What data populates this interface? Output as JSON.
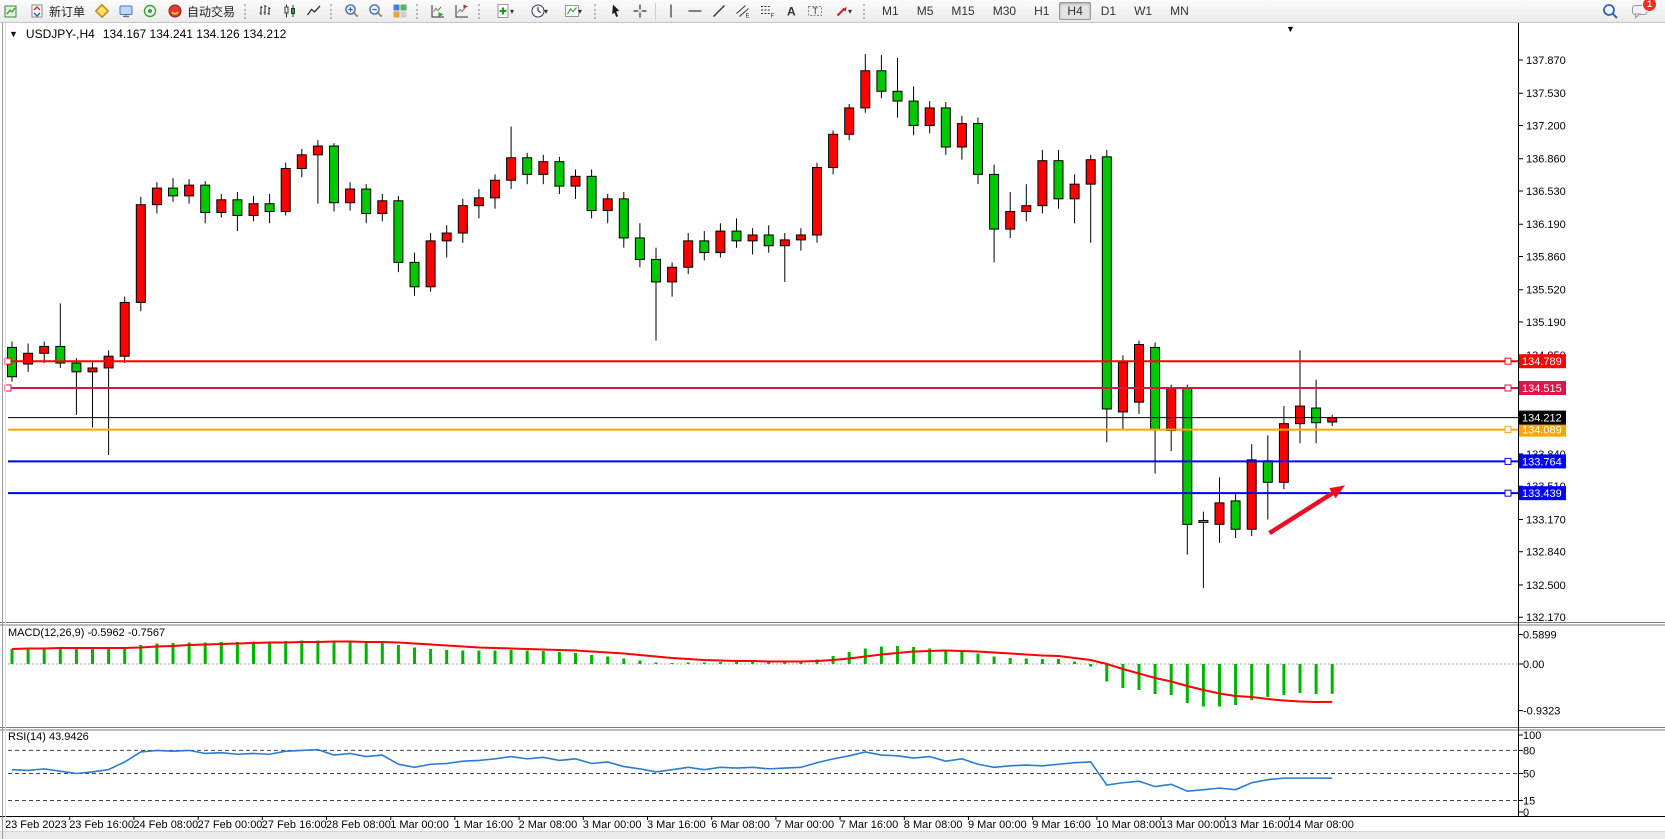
{
  "toolbar": {
    "new_order_label": "新订单",
    "auto_trading_label": "自动交易",
    "caret": "▾",
    "timeframes": [
      "M1",
      "M5",
      "M15",
      "M30",
      "H1",
      "H4",
      "D1",
      "W1",
      "MN"
    ],
    "active_timeframe": "H4",
    "notification_badge": "1"
  },
  "chart": {
    "collapse_arrow": "▼",
    "symbol_period": "USDJPY-,H4",
    "ohlc_text": "134.167 134.241 134.126 134.212",
    "dropdown_arrow": "▼"
  },
  "panels": {
    "macd_label": "MACD(12,26,9) -0.5962 -0.7567",
    "rsi_label": "RSI(14) 43.9426"
  },
  "chart_data": {
    "type": "candlestick",
    "symbol": "USDJPY-",
    "period": "H4",
    "ohlc_display": {
      "open": 134.167,
      "high": 134.241,
      "low": 134.126,
      "close": 134.212
    },
    "y_ticks": [
      137.87,
      137.53,
      137.2,
      136.86,
      136.53,
      136.19,
      135.86,
      135.52,
      135.19,
      134.85,
      134.51,
      134.18,
      133.84,
      133.51,
      133.17,
      132.84,
      132.5,
      132.17
    ],
    "x_labels": [
      "23 Feb 2023",
      "23 Feb 16:00",
      "24 Feb 08:00",
      "27 Feb 00:00",
      "27 Feb 16:00",
      "28 Feb 08:00",
      "1 Mar 00:00",
      "1 Mar 16:00",
      "2 Mar 08:00",
      "3 Mar 00:00",
      "3 Mar 16:00",
      "6 Mar 08:00",
      "7 Mar 00:00",
      "7 Mar 16:00",
      "8 Mar 08:00",
      "9 Mar 00:00",
      "9 Mar 16:00",
      "10 Mar 08:00",
      "13 Mar 00:00",
      "13 Mar 16:00",
      "14 Mar 08:00"
    ],
    "candles": [
      [
        134.93,
        134.99,
        134.58,
        134.63
      ],
      [
        134.76,
        134.97,
        134.68,
        134.87
      ],
      [
        134.87,
        134.99,
        134.77,
        134.94
      ],
      [
        134.94,
        135.38,
        134.72,
        134.77
      ],
      [
        134.77,
        134.82,
        134.24,
        134.68
      ],
      [
        134.68,
        134.78,
        134.11,
        134.72
      ],
      [
        134.72,
        134.9,
        133.83,
        134.84
      ],
      [
        134.84,
        135.45,
        134.77,
        135.39
      ],
      [
        135.39,
        136.47,
        135.3,
        136.39
      ],
      [
        136.39,
        136.62,
        136.3,
        136.56
      ],
      [
        136.56,
        136.66,
        136.42,
        136.48
      ],
      [
        136.48,
        136.65,
        136.4,
        136.59
      ],
      [
        136.59,
        136.63,
        136.2,
        136.31
      ],
      [
        136.31,
        136.5,
        136.26,
        136.44
      ],
      [
        136.44,
        136.52,
        136.12,
        136.28
      ],
      [
        136.28,
        136.48,
        136.22,
        136.4
      ],
      [
        136.4,
        136.5,
        136.2,
        136.32
      ],
      [
        136.32,
        136.82,
        136.28,
        136.76
      ],
      [
        136.76,
        136.96,
        136.67,
        136.9
      ],
      [
        136.9,
        137.05,
        136.4,
        136.99
      ],
      [
        136.99,
        137.02,
        136.32,
        136.41
      ],
      [
        136.41,
        136.62,
        136.33,
        136.55
      ],
      [
        136.55,
        136.6,
        136.2,
        136.3
      ],
      [
        136.3,
        136.5,
        136.22,
        136.43
      ],
      [
        136.43,
        136.48,
        135.7,
        135.8
      ],
      [
        135.8,
        135.9,
        135.46,
        135.55
      ],
      [
        135.55,
        136.1,
        135.5,
        136.02
      ],
      [
        136.02,
        136.18,
        135.85,
        136.1
      ],
      [
        136.1,
        136.45,
        136.0,
        136.38
      ],
      [
        136.38,
        136.55,
        136.25,
        136.46
      ],
      [
        136.46,
        136.7,
        136.35,
        136.64
      ],
      [
        136.64,
        137.19,
        136.55,
        136.87
      ],
      [
        136.87,
        136.92,
        136.6,
        136.7
      ],
      [
        136.7,
        136.9,
        136.6,
        136.83
      ],
      [
        136.83,
        136.88,
        136.5,
        136.58
      ],
      [
        136.58,
        136.75,
        136.45,
        136.68
      ],
      [
        136.68,
        136.75,
        136.25,
        136.33
      ],
      [
        136.33,
        136.5,
        136.2,
        136.45
      ],
      [
        136.45,
        136.52,
        135.95,
        136.05
      ],
      [
        136.05,
        136.2,
        135.75,
        135.83
      ],
      [
        135.83,
        135.95,
        135.0,
        135.6
      ],
      [
        135.6,
        135.8,
        135.45,
        135.75
      ],
      [
        135.75,
        136.1,
        135.68,
        136.02
      ],
      [
        136.02,
        136.12,
        135.82,
        135.9
      ],
      [
        135.9,
        136.2,
        135.85,
        136.12
      ],
      [
        136.12,
        136.25,
        135.95,
        136.02
      ],
      [
        136.02,
        136.15,
        135.88,
        136.08
      ],
      [
        136.08,
        136.18,
        135.9,
        135.97
      ],
      [
        135.97,
        136.1,
        135.6,
        136.03
      ],
      [
        136.03,
        136.15,
        135.92,
        136.08
      ],
      [
        136.08,
        136.82,
        136.0,
        136.77
      ],
      [
        136.77,
        137.15,
        136.7,
        137.11
      ],
      [
        137.11,
        137.42,
        137.05,
        137.38
      ],
      [
        137.38,
        137.93,
        137.33,
        137.76
      ],
      [
        137.76,
        137.92,
        137.48,
        137.55
      ],
      [
        137.55,
        137.89,
        137.28,
        137.45
      ],
      [
        137.45,
        137.6,
        137.1,
        137.2
      ],
      [
        137.2,
        137.45,
        137.12,
        137.38
      ],
      [
        137.38,
        137.44,
        136.9,
        136.98
      ],
      [
        136.98,
        137.3,
        136.85,
        137.22
      ],
      [
        137.22,
        137.28,
        136.6,
        136.7
      ],
      [
        136.7,
        136.8,
        135.8,
        136.14
      ],
      [
        136.14,
        136.52,
        136.05,
        136.32
      ],
      [
        136.32,
        136.6,
        136.22,
        136.38
      ],
      [
        136.38,
        136.95,
        136.3,
        136.84
      ],
      [
        136.84,
        136.95,
        136.35,
        136.45
      ],
      [
        136.45,
        136.7,
        136.2,
        136.6
      ],
      [
        136.6,
        136.9,
        136.0,
        136.85
      ],
      [
        136.88,
        136.95,
        133.96,
        134.3
      ],
      [
        134.27,
        134.85,
        134.08,
        134.78
      ],
      [
        134.37,
        135.0,
        134.25,
        134.96
      ],
      [
        134.93,
        134.98,
        133.64,
        134.09
      ],
      [
        134.08,
        134.55,
        133.87,
        134.51
      ],
      [
        134.51,
        134.55,
        132.81,
        133.12
      ],
      [
        133.16,
        133.25,
        132.47,
        133.14
      ],
      [
        133.12,
        133.6,
        132.93,
        133.34
      ],
      [
        133.36,
        133.45,
        132.98,
        133.07
      ],
      [
        133.07,
        133.94,
        133.0,
        133.78
      ],
      [
        133.77,
        134.03,
        133.17,
        133.55
      ],
      [
        133.55,
        134.33,
        133.48,
        134.15
      ],
      [
        134.15,
        134.9,
        133.95,
        134.33
      ],
      [
        134.31,
        134.6,
        133.95,
        134.16
      ],
      [
        134.167,
        134.241,
        134.126,
        134.212
      ]
    ],
    "hlines": [
      {
        "price": 134.789,
        "label": "134.789",
        "color": "#FF0000"
      },
      {
        "price": 134.515,
        "label": "134.515",
        "color": "#DC1447"
      },
      {
        "price": 134.089,
        "label": "134.089",
        "color": "#FFA500"
      },
      {
        "price": 133.764,
        "label": "133.764",
        "color": "#0000FF"
      },
      {
        "price": 133.439,
        "label": "133.439",
        "color": "#0000FF"
      }
    ],
    "current_price": {
      "price": 134.212,
      "label": "134.212",
      "color": "#000000"
    },
    "macd": {
      "name": "MACD(12,26,9)",
      "value": -0.5962,
      "signal_value": -0.7567,
      "ticks": [
        "0.5899",
        "0.00",
        "-0.9323"
      ],
      "tick_values": [
        0.5899,
        0,
        -0.9323
      ],
      "histogram": [
        0.3,
        0.32,
        0.33,
        0.34,
        0.32,
        0.3,
        0.3,
        0.33,
        0.38,
        0.41,
        0.42,
        0.43,
        0.43,
        0.44,
        0.44,
        0.45,
        0.45,
        0.46,
        0.47,
        0.47,
        0.46,
        0.45,
        0.43,
        0.42,
        0.38,
        0.33,
        0.3,
        0.28,
        0.27,
        0.27,
        0.27,
        0.28,
        0.27,
        0.26,
        0.24,
        0.22,
        0.18,
        0.15,
        0.11,
        0.07,
        0.03,
        0.02,
        0.03,
        0.03,
        0.04,
        0.05,
        0.05,
        0.04,
        0.04,
        0.05,
        0.09,
        0.16,
        0.24,
        0.31,
        0.35,
        0.36,
        0.34,
        0.31,
        0.27,
        0.25,
        0.21,
        0.15,
        0.12,
        0.11,
        0.1,
        0.1,
        0.05,
        -0.05,
        -0.35,
        -0.48,
        -0.52,
        -0.6,
        -0.62,
        -0.78,
        -0.85,
        -0.85,
        -0.82,
        -0.72,
        -0.66,
        -0.62,
        -0.58,
        -0.6,
        -0.5962
      ],
      "signal": [
        0.3,
        0.31,
        0.31,
        0.32,
        0.32,
        0.32,
        0.32,
        0.32,
        0.33,
        0.35,
        0.36,
        0.38,
        0.39,
        0.4,
        0.41,
        0.42,
        0.43,
        0.43,
        0.44,
        0.44,
        0.45,
        0.45,
        0.44,
        0.44,
        0.43,
        0.41,
        0.39,
        0.37,
        0.35,
        0.33,
        0.32,
        0.31,
        0.3,
        0.29,
        0.28,
        0.27,
        0.25,
        0.23,
        0.21,
        0.18,
        0.15,
        0.12,
        0.1,
        0.08,
        0.07,
        0.06,
        0.06,
        0.05,
        0.05,
        0.05,
        0.06,
        0.08,
        0.11,
        0.15,
        0.19,
        0.22,
        0.25,
        0.26,
        0.27,
        0.26,
        0.25,
        0.23,
        0.21,
        0.19,
        0.17,
        0.16,
        0.12,
        0.08,
        0.0,
        -0.1,
        -0.19,
        -0.28,
        -0.35,
        -0.44,
        -0.52,
        -0.59,
        -0.64,
        -0.66,
        -0.7,
        -0.73,
        -0.75,
        -0.76,
        -0.7567
      ]
    },
    "rsi": {
      "name": "RSI(14)",
      "value": 43.9426,
      "ticks": [
        100,
        80,
        50,
        15,
        0
      ],
      "levels": [
        80,
        50,
        15
      ],
      "values": [
        55,
        54,
        56,
        53,
        50,
        52,
        55,
        65,
        78,
        80,
        79,
        80,
        76,
        77,
        75,
        76,
        75,
        79,
        80,
        81,
        74,
        76,
        72,
        74,
        62,
        58,
        62,
        63,
        66,
        67,
        69,
        72,
        69,
        71,
        67,
        69,
        63,
        65,
        59,
        56,
        52,
        55,
        58,
        55,
        58,
        57,
        58,
        56,
        57,
        58,
        64,
        69,
        73,
        78,
        74,
        73,
        70,
        72,
        66,
        69,
        62,
        58,
        60,
        61,
        60,
        62,
        64,
        65,
        35,
        38,
        40,
        33,
        36,
        27,
        29,
        31,
        29,
        38,
        42,
        44,
        44,
        44,
        43.94
      ]
    },
    "arrow_annotation": {
      "from_bar": 78.1,
      "from_price": 133.03,
      "to_bar": 82.8,
      "to_price": 133.52,
      "color": "#E81123"
    },
    "colors": {
      "bull": "#FF0000",
      "bear": "#00C800",
      "outline": "#000000",
      "background": "#FFFFFF",
      "macd_hist": "#00B400",
      "macd_signal": "#FF0000",
      "rsi_line": "#2B7BD3"
    }
  }
}
